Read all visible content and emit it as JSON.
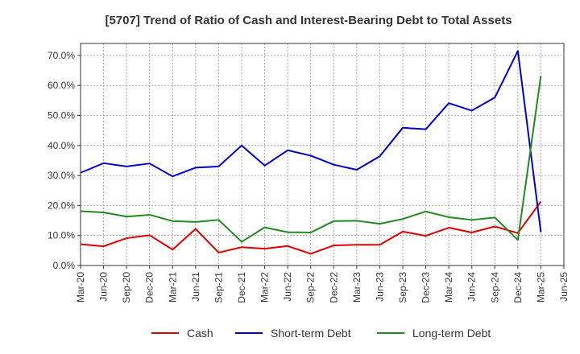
{
  "chart_data": {
    "type": "line",
    "title": "[5707]  Trend of Ratio of Cash and Interest-Bearing Debt to Total Assets",
    "xlabel": "",
    "ylabel": "",
    "ylim": [
      0,
      74
    ],
    "yticks": [
      0,
      10,
      20,
      30,
      40,
      50,
      60,
      70
    ],
    "ytick_labels": [
      "0.0%",
      "10.0%",
      "20.0%",
      "30.0%",
      "40.0%",
      "50.0%",
      "60.0%",
      "70.0%"
    ],
    "categories": [
      "Mar-20",
      "Jun-20",
      "Sep-20",
      "Dec-20",
      "Mar-21",
      "Jun-21",
      "Sep-21",
      "Dec-21",
      "Mar-22",
      "Jun-22",
      "Sep-22",
      "Dec-22",
      "Mar-23",
      "Jun-23",
      "Sep-23",
      "Dec-23",
      "Mar-24",
      "Jun-24",
      "Sep-24",
      "Dec-24",
      "Mar-25",
      "Jun-25"
    ],
    "grid": true,
    "legend_position": "bottom",
    "series": [
      {
        "name": "Cash",
        "color": "#dd0000",
        "values": [
          7.1,
          6.4,
          9.1,
          10.1,
          5.3,
          12.2,
          4.3,
          6.1,
          5.6,
          6.5,
          3.9,
          6.7,
          6.9,
          6.9,
          11.3,
          9.9,
          12.6,
          11.0,
          13.0,
          10.8,
          21.3,
          null
        ]
      },
      {
        "name": "Short-term Debt",
        "color": "#0000cc",
        "values": [
          30.9,
          34.1,
          33.0,
          34.0,
          29.7,
          32.6,
          33.0,
          40.0,
          33.3,
          38.4,
          36.6,
          33.6,
          31.9,
          36.4,
          45.9,
          45.4,
          54.1,
          51.6,
          56.0,
          71.5,
          11.1,
          null
        ]
      },
      {
        "name": "Long-term Debt",
        "color": "#228822",
        "values": [
          18.1,
          17.7,
          16.3,
          16.9,
          14.8,
          14.5,
          15.2,
          7.9,
          12.7,
          11.1,
          11.0,
          14.8,
          14.9,
          13.9,
          15.5,
          18.0,
          16.1,
          15.2,
          16.0,
          8.5,
          63.2,
          null
        ]
      }
    ]
  }
}
